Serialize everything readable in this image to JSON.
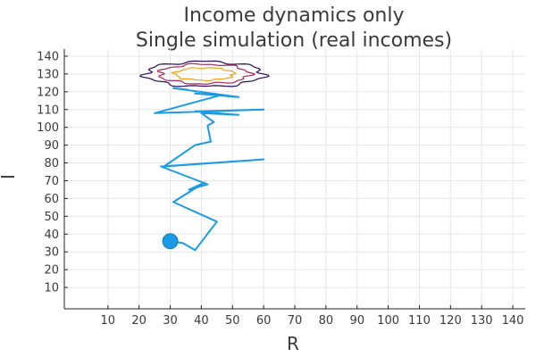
{
  "chart_data": {
    "type": "line",
    "title": "Income dynamics only",
    "subtitle": "Single simulation (real incomes)",
    "xlabel": "R",
    "ylabel": "I",
    "xlim": [
      -4,
      144
    ],
    "ylim": [
      -2,
      144
    ],
    "xticks": [
      10,
      20,
      30,
      40,
      50,
      60,
      70,
      80,
      90,
      100,
      110,
      120,
      130,
      140
    ],
    "yticks": [
      10,
      20,
      30,
      40,
      50,
      60,
      70,
      80,
      90,
      100,
      110,
      120,
      130,
      140
    ],
    "grid": true,
    "legend": "none",
    "series": [
      {
        "type": "line",
        "color": "#1b9be6",
        "points": [
          [
            30,
            36
          ],
          [
            34,
            35
          ],
          [
            38,
            31
          ],
          [
            45,
            47
          ],
          [
            31,
            58
          ],
          [
            41,
            69
          ],
          [
            36,
            65
          ],
          [
            42,
            68
          ],
          [
            27,
            78
          ],
          [
            60,
            82
          ],
          [
            28,
            78
          ],
          [
            38,
            90
          ],
          [
            43,
            92
          ],
          [
            42,
            101
          ],
          [
            44,
            103
          ],
          [
            40,
            108
          ],
          [
            52,
            107
          ],
          [
            38,
            109
          ],
          [
            60,
            110
          ],
          [
            25,
            108
          ],
          [
            46,
            118
          ],
          [
            38,
            119
          ],
          [
            52,
            117
          ],
          [
            31,
            122
          ],
          [
            36,
            121
          ]
        ]
      },
      {
        "type": "marker",
        "color": "#1b9be6",
        "points": [
          [
            30,
            36
          ]
        ]
      },
      {
        "type": "contour",
        "levels": [
          {
            "color": "#2b0a5a",
            "center": [
              41,
              130
            ],
            "radius": [
              19,
              7
            ]
          },
          {
            "color": "#a5275c",
            "center": [
              41,
              130
            ],
            "radius": [
              14.5,
              5.5
            ]
          },
          {
            "color": "#f0a21c",
            "center": [
              41,
              130
            ],
            "radius": [
              9.5,
              3.5
            ]
          }
        ]
      }
    ]
  }
}
